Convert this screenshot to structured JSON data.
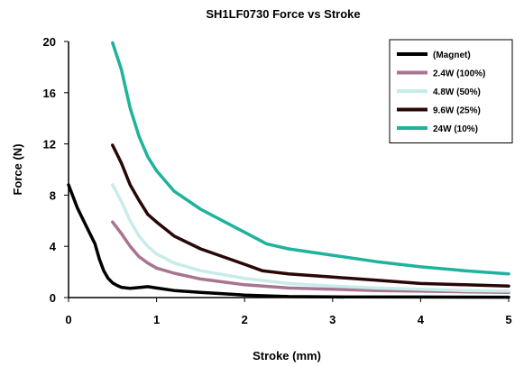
{
  "chart_data": {
    "type": "line",
    "title": "SH1LF0730 Force vs Stroke",
    "xlabel": "Stroke (mm)",
    "ylabel": "Force (N)",
    "xlim": [
      0,
      5
    ],
    "ylim": [
      0,
      20
    ],
    "xticks": [
      0,
      1,
      2,
      3,
      4,
      5
    ],
    "yticks": [
      0,
      4,
      8,
      12,
      16,
      20
    ],
    "grid": false,
    "legend_position": "top-right",
    "series": [
      {
        "name": "(Magnet)",
        "color": "#000000",
        "x": [
          0,
          0.1,
          0.2,
          0.3,
          0.35,
          0.4,
          0.45,
          0.5,
          0.55,
          0.6,
          0.7,
          0.8,
          0.9,
          1.0,
          1.2,
          1.5,
          1.8,
          2.0,
          2.3,
          2.5,
          3,
          4,
          5
        ],
        "y": [
          8.8,
          7.0,
          5.6,
          4.2,
          3.0,
          2.1,
          1.5,
          1.15,
          0.95,
          0.8,
          0.72,
          0.78,
          0.85,
          0.75,
          0.55,
          0.4,
          0.28,
          0.2,
          0.12,
          0.08,
          0.05,
          0.04,
          0.03
        ]
      },
      {
        "name": "2.4W (100%)",
        "color": "#a87590",
        "x": [
          0.5,
          0.6,
          0.7,
          0.8,
          0.9,
          1.0,
          1.2,
          1.5,
          2.0,
          2.5,
          3,
          3.5,
          4,
          4.5,
          5
        ],
        "y": [
          5.9,
          5.0,
          4.0,
          3.2,
          2.7,
          2.3,
          1.9,
          1.45,
          1.0,
          0.75,
          0.65,
          0.55,
          0.5,
          0.45,
          0.4
        ]
      },
      {
        "name": "4.8W (50%)",
        "color": "#c8ecea",
        "x": [
          0.5,
          0.6,
          0.7,
          0.8,
          0.9,
          1.0,
          1.2,
          1.5,
          2.0,
          2.5,
          3,
          3.5,
          4,
          4.5,
          5
        ],
        "y": [
          8.8,
          7.5,
          6.0,
          4.8,
          4.0,
          3.4,
          2.7,
          2.1,
          1.5,
          1.1,
          0.9,
          0.75,
          0.65,
          0.55,
          0.5
        ]
      },
      {
        "name": "9.6W (25%)",
        "color": "#2a0707",
        "x": [
          0.5,
          0.6,
          0.7,
          0.8,
          0.9,
          1.0,
          1.2,
          1.5,
          2.0,
          2.2,
          2.5,
          3,
          3.5,
          4,
          4.5,
          5
        ],
        "y": [
          11.9,
          10.5,
          8.8,
          7.6,
          6.5,
          5.9,
          4.8,
          3.8,
          2.6,
          2.1,
          1.85,
          1.6,
          1.35,
          1.1,
          1.0,
          0.9
        ]
      },
      {
        "name": "24W (10%)",
        "color": "#1fb39d",
        "x": [
          0.5,
          0.6,
          0.7,
          0.8,
          0.9,
          1.0,
          1.2,
          1.5,
          2.0,
          2.25,
          2.5,
          3,
          3.5,
          4,
          4.5,
          5
        ],
        "y": [
          19.9,
          17.8,
          14.8,
          12.6,
          11.0,
          9.9,
          8.3,
          6.9,
          5.1,
          4.2,
          3.8,
          3.3,
          2.8,
          2.4,
          2.1,
          1.85
        ]
      }
    ]
  }
}
